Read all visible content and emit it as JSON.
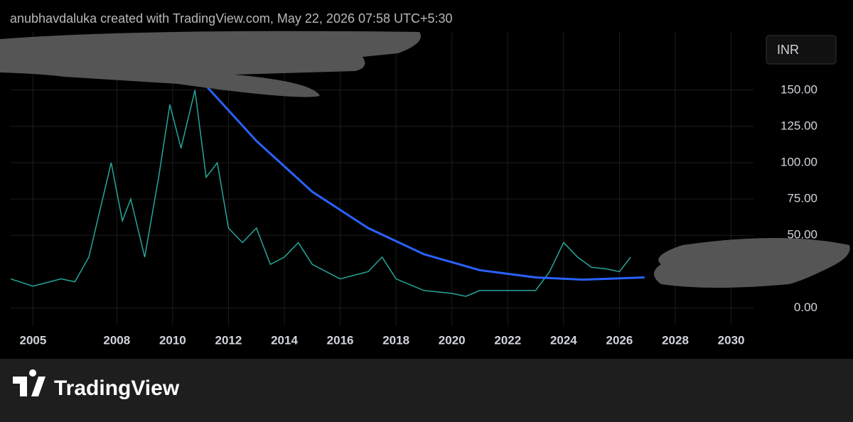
{
  "header": {
    "attribution": "anubhavdaluka created with TradingView.com, May 22, 2026 07:58 UTC+5:30",
    "currency": "INR"
  },
  "footer": {
    "brand": "TradingView"
  },
  "chart_data": {
    "type": "line",
    "xlim": [
      2004.2,
      2030.8
    ],
    "ylim": [
      -12,
      190
    ],
    "xticks": [
      2005,
      2008,
      2010,
      2012,
      2014,
      2016,
      2018,
      2020,
      2022,
      2024,
      2026,
      2028,
      2030
    ],
    "yticks": [
      {
        "value": 0,
        "label": "0.00"
      },
      {
        "value": 50,
        "label": "50.00"
      },
      {
        "value": 75,
        "label": "75.00"
      },
      {
        "value": 100,
        "label": "100.00"
      },
      {
        "value": 125,
        "label": "125.00"
      },
      {
        "value": 150,
        "label": "150.00"
      }
    ],
    "grid": true,
    "series": [
      {
        "color": "#26a69a",
        "x": [
          2004.2,
          2005,
          2006,
          2006.5,
          2007,
          2007.8,
          2008.2,
          2008.5,
          2009,
          2009.5,
          2009.9,
          2010.3,
          2010.8,
          2011.2,
          2011.6,
          2012,
          2012.5,
          2013,
          2013.5,
          2014,
          2014.5,
          2015,
          2016,
          2017,
          2017.5,
          2018,
          2019,
          2020,
          2020.5,
          2021,
          2022,
          2023,
          2023.5,
          2024,
          2024.5,
          2025,
          2025.5,
          2026,
          2026.4
        ],
        "values": [
          20,
          15,
          20,
          18,
          35,
          100,
          60,
          75,
          35,
          90,
          140,
          110,
          150,
          90,
          100,
          55,
          45,
          55,
          30,
          35,
          45,
          30,
          20,
          25,
          35,
          20,
          12,
          10,
          8,
          12,
          12,
          12,
          25,
          45,
          35,
          28,
          27,
          25,
          35
        ]
      },
      {
        "color": "#2962ff",
        "x": [
          2011.1,
          2013,
          2015,
          2017,
          2019,
          2021,
          2023,
          2024.7,
          2026.9
        ],
        "values": [
          155,
          115,
          80,
          55,
          37,
          26,
          21,
          19.5,
          21
        ]
      }
    ]
  }
}
